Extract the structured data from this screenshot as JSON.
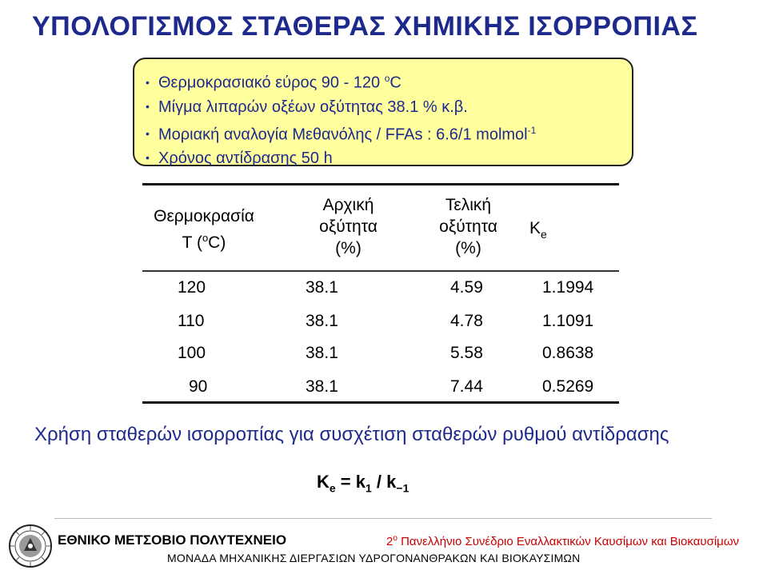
{
  "title": "ΥΠΟΛΟΓΙΣΜΟΣ ΣΤΑΘΕΡΑΣ ΧΗΜΙΚΗΣ ΙΣΟΡΡΟΠΙΑΣ",
  "conditions": {
    "temp_range": "Θερμοκρασιακό εύρος 90 - 120 ",
    "temp_unit_sup": "o",
    "temp_unit": "C",
    "mixture": "Μίγμα λιπαρών οξέων οξύτητας 38.1 % κ.β.",
    "molar_ratio": "Μοριακή αναλογία Μεθανόλης / FFAs : 6.6/1 molmol",
    "molar_ratio_sup": "-1",
    "reaction_time": "Χρόνος αντίδρασης 50 h"
  },
  "table": {
    "headers": {
      "temperature_line1": "Θερμοκρασία",
      "temperature_line2_pre": "T (",
      "temperature_line2_sup": "o",
      "temperature_line2_post": "C)",
      "initial_line1": "Αρχική",
      "initial_line2": "οξύτητα",
      "initial_line3": "(%)",
      "final_line1": "Τελική",
      "final_line2": "οξύτητα",
      "final_line3": "(%)",
      "ke_main": "K",
      "ke_sub": "e"
    },
    "rows": [
      {
        "temperature": "120",
        "initial_acidity": "38.1",
        "final_acidity": "4.59",
        "ke": "1.1994"
      },
      {
        "temperature": "110",
        "initial_acidity": "38.1",
        "final_acidity": "4.78",
        "ke": "1.1091"
      },
      {
        "temperature": "100",
        "initial_acidity": "38.1",
        "final_acidity": "5.58",
        "ke": "0.8638"
      },
      {
        "temperature": "90",
        "initial_acidity": "38.1",
        "final_acidity": "7.44",
        "ke": "0.5269"
      }
    ]
  },
  "note": "Χρήση σταθερών ισορροπίας για συσχέτιση σταθερών ρυθμού αντίδρασης",
  "formula": {
    "lhs_main": "K",
    "lhs_sub": "e",
    "equals": " = ",
    "k_main": "k",
    "k_sub": "1",
    "slash": " / ",
    "k2_main": "k",
    "k2_sub": "−1"
  },
  "footer": {
    "university": "ΕΘΝΙΚΟ ΜΕΤΣΟΒΙΟ ΠΟΛΥΤΕΧΝΕΙΟ",
    "conference_num": "2",
    "conference_sup": "ο",
    "conference_rest": " Πανελλήνιο Συνέδριο Εναλλακτικών Καυσίμων και Βιοκαυσίμων",
    "lab": "ΜΟΝΑΔΑ ΜΗΧΑΝΙΚΗΣ ΔΙΕΡΓΑΣΙΩΝ ΥΔΡΟΓΟΝΑΝΘΡΑΚΩΝ ΚΑΙ ΒΙΟΚΑΥΣΙΜΩΝ",
    "logo_icon": "university-seal-icon"
  },
  "colors": {
    "title": "#1d2a8c",
    "box_fill": "#ffff9e",
    "conference": "#cc0000"
  }
}
